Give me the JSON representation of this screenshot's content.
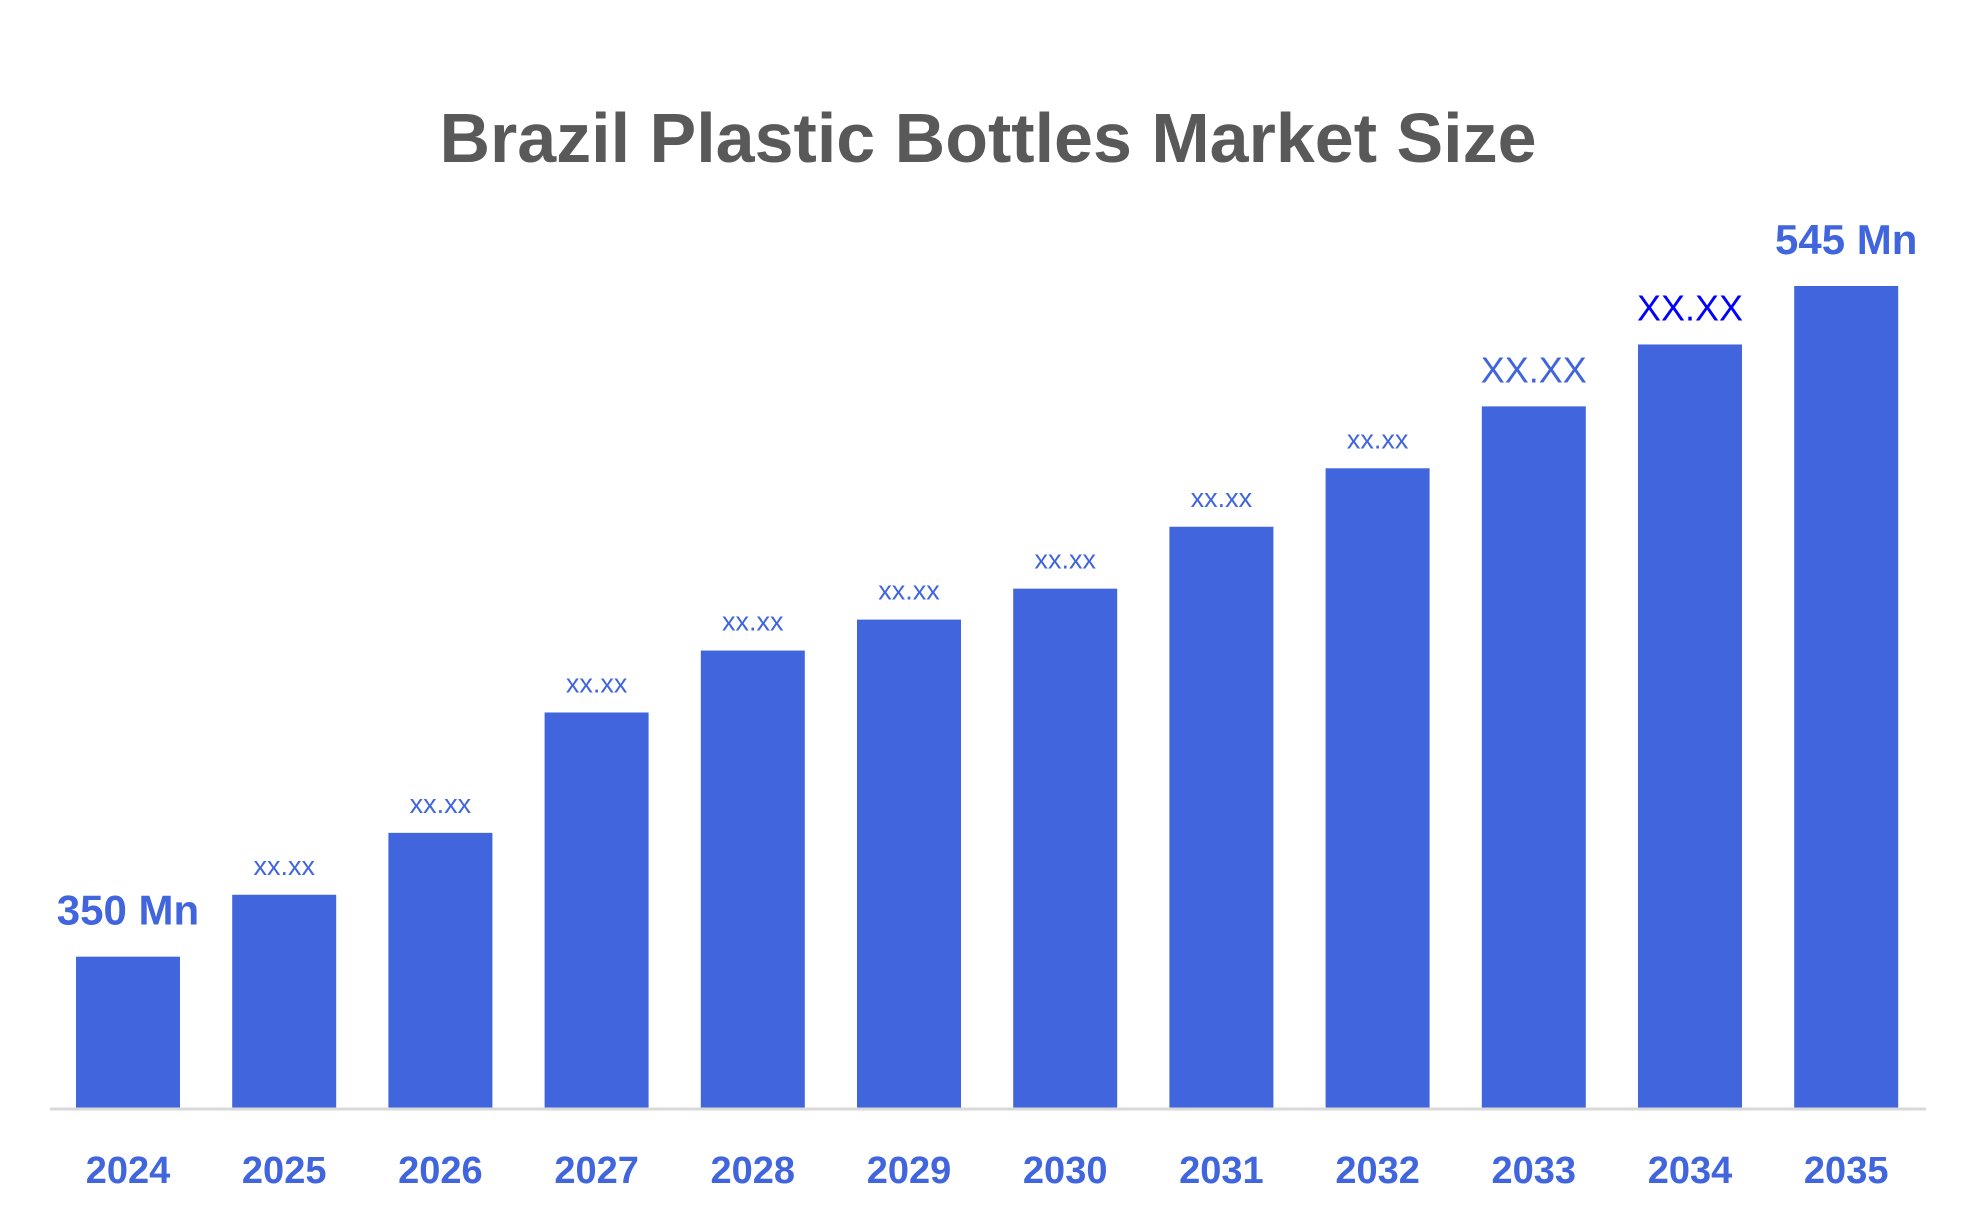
{
  "chart_data": {
    "type": "bar",
    "title": "Brazil Plastic Bottles Market Size",
    "xlabel": "",
    "ylabel": "",
    "categories": [
      "2024",
      "2025",
      "2026",
      "2027",
      "2028",
      "2029",
      "2030",
      "2031",
      "2032",
      "2033",
      "2034",
      "2035"
    ],
    "values": [
      350,
      368,
      386,
      421,
      439,
      448,
      457,
      475,
      492,
      510,
      528,
      545
    ],
    "data_labels": [
      "350 Mn",
      "xx.xx",
      "xx.xx",
      "xx.xx",
      "xx.xx",
      "xx.xx",
      "xx.xx",
      "xx.xx",
      "xx.xx",
      "XX.XX",
      "XX.XX",
      "545 Mn"
    ],
    "unit": "Mn",
    "ylim": [
      306,
      545
    ],
    "grid": false,
    "legend": "none",
    "colors": {
      "bar": "#4065DD",
      "label": "#4065DD",
      "label_2034": "#0000FF",
      "title": "#595959",
      "axis": "#D9D9D9"
    }
  }
}
